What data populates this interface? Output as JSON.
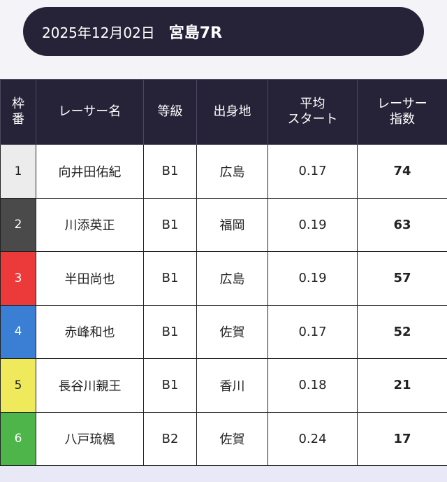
{
  "header": {
    "date": "2025年12月02日",
    "race": "宮島7R"
  },
  "table": {
    "headers": {
      "waku_line1": "枠",
      "waku_line2": "番",
      "name": "レーサー名",
      "grade": "等級",
      "origin": "出身地",
      "avg_line1": "平均",
      "avg_line2": "スタート",
      "idx_line1": "レーサー",
      "idx_line2": "指数"
    },
    "rows": [
      {
        "waku": "1",
        "waku_color": "#ececec",
        "waku_text_color": "#222222",
        "name": "向井田佑紀",
        "grade": "B1",
        "origin": "広島",
        "avg_st": "0.17",
        "score": "74"
      },
      {
        "waku": "2",
        "waku_color": "#4a4a4a",
        "waku_text_color": "#ffffff",
        "name": "川添英正",
        "grade": "B1",
        "origin": "福岡",
        "avg_st": "0.19",
        "score": "63"
      },
      {
        "waku": "3",
        "waku_color": "#ec3a3a",
        "waku_text_color": "#ffffff",
        "name": "半田尚也",
        "grade": "B1",
        "origin": "広島",
        "avg_st": "0.19",
        "score": "57"
      },
      {
        "waku": "4",
        "waku_color": "#3a7fd4",
        "waku_text_color": "#ffffff",
        "name": "赤峰和也",
        "grade": "B1",
        "origin": "佐賀",
        "avg_st": "0.17",
        "score": "52"
      },
      {
        "waku": "5",
        "waku_color": "#eeea5c",
        "waku_text_color": "#222222",
        "name": "長谷川親王",
        "grade": "B1",
        "origin": "香川",
        "avg_st": "0.18",
        "score": "21"
      },
      {
        "waku": "6",
        "waku_color": "#4db54a",
        "waku_text_color": "#ffffff",
        "name": "八戸琉楓",
        "grade": "B2",
        "origin": "佐賀",
        "avg_st": "0.24",
        "score": "17"
      }
    ]
  }
}
